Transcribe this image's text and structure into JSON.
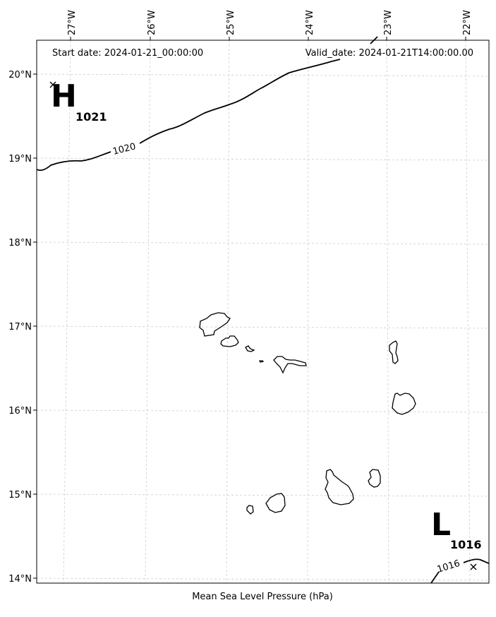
{
  "header": {
    "start_date": "Start date: 2024-01-21_00:00:00",
    "valid_date": "Valid_date: 2024-01-21T14:00:00.00"
  },
  "caption": "Mean Sea Level Pressure (hPa)",
  "lon_labels": [
    "27°W",
    "26°W",
    "25°W",
    "24°W",
    "23°W",
    "22°W"
  ],
  "lat_labels": [
    "20°N",
    "19°N",
    "18°N",
    "17°N",
    "16°N",
    "15°N",
    "14°N"
  ],
  "high": {
    "letter": "H",
    "value": "1021"
  },
  "low": {
    "letter": "L",
    "value": "1016"
  },
  "contours": [
    {
      "label": "1020"
    },
    {
      "label": "1016"
    }
  ],
  "style": {
    "grid_color": "#cccccc",
    "line_color": "#000000",
    "background": "#ffffff"
  }
}
